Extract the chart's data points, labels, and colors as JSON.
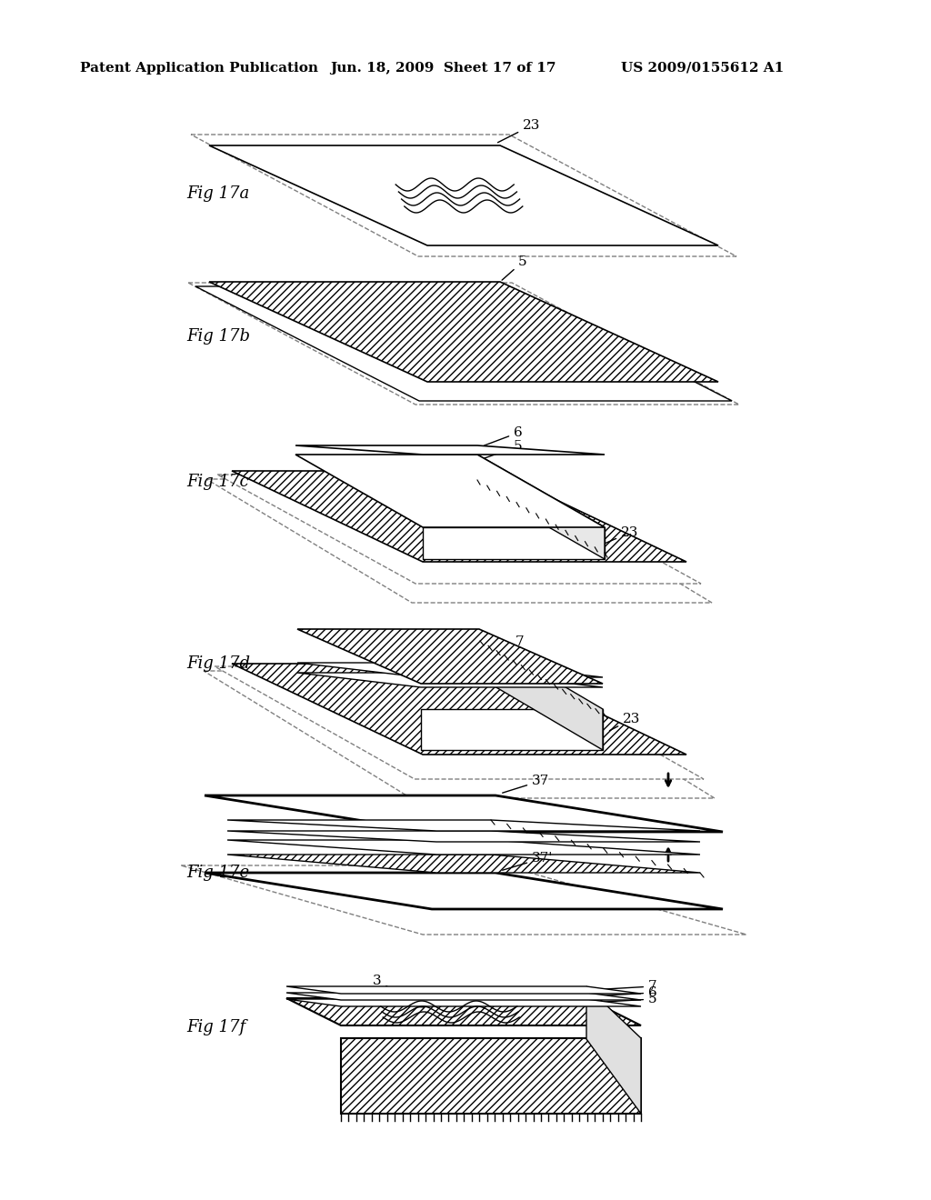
{
  "header_left": "Patent Application Publication",
  "header_mid": "Jun. 18, 2009  Sheet 17 of 17",
  "header_right": "US 2009/0155612 A1",
  "background_color": "#ffffff",
  "line_color": "#000000"
}
